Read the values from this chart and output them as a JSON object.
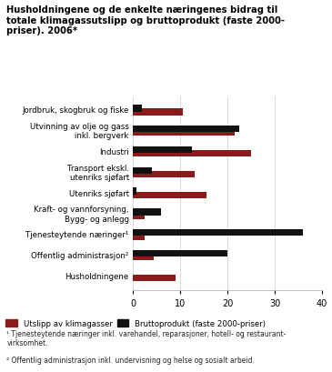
{
  "title": "Husholdningene og de enkelte næringenes bidrag til\ntotale klimagassutslipp og bruttoprodukt (faste 2000-\npriser). 2006*",
  "categories": [
    "Jordbruk, skogbruk og fiske",
    "Utvinning av olje og gass\ninkl. bergverk",
    "Industri",
    "Transport ekskl.\nutenriks sjøfart",
    "Utenriks sjøfart",
    "Kraft- og vannforsyning,\nBygg- og anlegg",
    "Tjenesteytende næringer¹",
    "Offentlig administrasjon²",
    "Husholdningene"
  ],
  "utslipp": [
    10.5,
    21.5,
    25.0,
    13.0,
    15.5,
    2.5,
    2.5,
    4.5,
    9.0
  ],
  "bruttoprodukt": [
    2.0,
    22.5,
    12.5,
    4.0,
    0.8,
    6.0,
    36.0,
    20.0,
    0.0
  ],
  "color_utslipp": "#8B1A1A",
  "color_brutto": "#111111",
  "xlim": [
    0,
    40
  ],
  "xticks": [
    0,
    10,
    20,
    30,
    40
  ],
  "footnote1": "¹ Tjenesteytende næringer inkl. varehandel, reparasjoner, hotell- og restaurant-\nvirksomhet.",
  "footnote2": "² Offentlig administrasjon inkl. undervisning og helse og sosialt arbeid.",
  "legend_utslipp": "Utslipp av klimagasser",
  "legend_brutto": "Bruttoprodukt (faste 2000-priser)"
}
